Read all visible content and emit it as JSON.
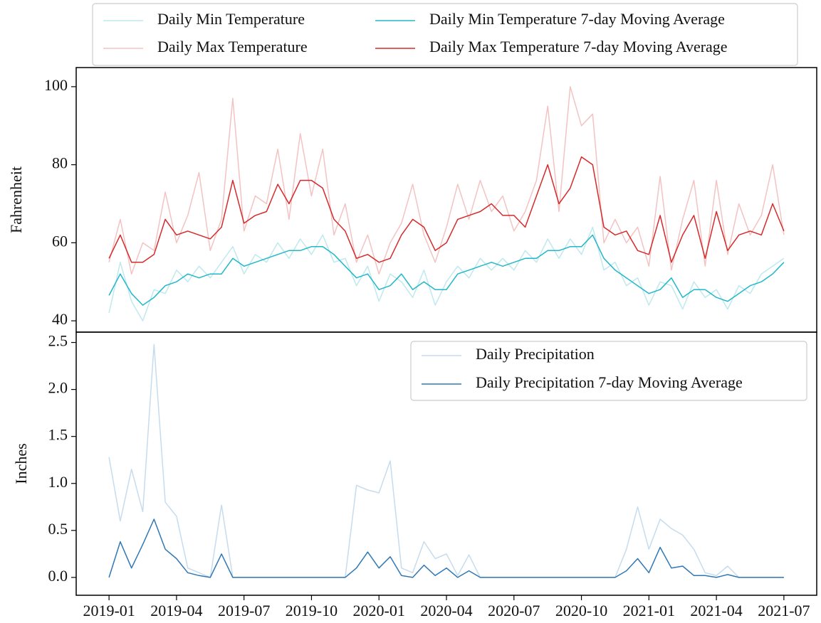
{
  "chart_data": [
    {
      "type": "line",
      "ylabel": "Fahrenheit",
      "legend": "above",
      "legend_columns": 2,
      "x": [
        0,
        0.5,
        1,
        1.5,
        2,
        2.5,
        3,
        3.5,
        4,
        4.5,
        5,
        5.5,
        6,
        6.5,
        7,
        7.5,
        8,
        8.5,
        9,
        9.5,
        10,
        10.5,
        11,
        11.5,
        12,
        12.5,
        13,
        13.5,
        14,
        14.5,
        15,
        15.5,
        16,
        16.5,
        17,
        17.5,
        18,
        18.5,
        19,
        19.5,
        20,
        20.5,
        21,
        21.5,
        22,
        22.5,
        23,
        23.5,
        24,
        24.5,
        25,
        25.5,
        26,
        26.5,
        27,
        27.5,
        28,
        28.5,
        29,
        29.5,
        30
      ],
      "xlim": [
        -1.46,
        31.46
      ],
      "ylim": [
        37.1,
        104.9
      ],
      "yticks": [
        40,
        60,
        80,
        100
      ],
      "series": [
        {
          "name": "Daily Min Temperature",
          "color": "#bfe9ef",
          "values": [
            42,
            55,
            45,
            40,
            48,
            47,
            53,
            50,
            54,
            51,
            55,
            59,
            52,
            57,
            55,
            60,
            56,
            61,
            57,
            62,
            55,
            56,
            49,
            54,
            45,
            52,
            50,
            46,
            53,
            44,
            50,
            54,
            51,
            56,
            53,
            56,
            53,
            58,
            55,
            61,
            56,
            61,
            57,
            64,
            53,
            55,
            49,
            51,
            44,
            50,
            49,
            43,
            50,
            46,
            48,
            43,
            49,
            47,
            52,
            54,
            56
          ]
        },
        {
          "name": "Daily Max Temperature",
          "color": "#f3c3c3",
          "values": [
            55,
            66,
            52,
            60,
            58,
            73,
            60,
            67,
            78,
            58,
            66,
            97,
            63,
            72,
            70,
            84,
            66,
            88,
            72,
            84,
            62,
            70,
            55,
            62,
            52,
            60,
            65,
            75,
            62,
            55,
            64,
            75,
            66,
            76,
            68,
            72,
            63,
            68,
            76,
            95,
            68,
            100,
            90,
            93,
            60,
            66,
            60,
            64,
            54,
            77,
            53,
            66,
            76,
            54,
            76,
            57,
            70,
            62,
            67,
            80,
            62
          ]
        },
        {
          "name": "Daily Min Temperature 7-day Moving Average",
          "color": "#22b8c9",
          "values": [
            46.5,
            52,
            47,
            44,
            46,
            49,
            50,
            52,
            51,
            52,
            52,
            56,
            54,
            55,
            56,
            57,
            58,
            58,
            59,
            59,
            57,
            54,
            51,
            52,
            48,
            49,
            52,
            48,
            50,
            48,
            48,
            52,
            53,
            54,
            55,
            54,
            55,
            56,
            56,
            58,
            58,
            59,
            59,
            62,
            56,
            53,
            51,
            49,
            47,
            48,
            51,
            46,
            48,
            48,
            46,
            45,
            47,
            49,
            50,
            52,
            55
          ]
        },
        {
          "name": "Daily Max Temperature 7-day Moving Average",
          "color": "#d62a2a",
          "values": [
            56,
            62,
            55,
            55,
            57,
            66,
            62,
            63,
            62,
            61,
            64,
            76,
            65,
            67,
            68,
            75,
            70,
            76,
            76,
            74,
            66,
            63,
            56,
            57,
            55,
            56,
            62,
            66,
            64,
            58,
            60,
            66,
            67,
            68,
            70,
            67,
            67,
            64,
            72,
            80,
            70,
            74,
            82,
            80,
            64,
            62,
            63,
            58,
            57,
            67,
            55,
            62,
            67,
            56,
            68,
            58,
            62,
            63,
            62,
            70,
            63
          ]
        }
      ]
    },
    {
      "type": "line",
      "ylabel": "Inches",
      "legend": "upper right",
      "legend_columns": 1,
      "x": [
        0,
        0.5,
        1,
        1.5,
        2,
        2.5,
        3,
        3.5,
        4,
        4.5,
        5,
        5.5,
        6,
        6.5,
        7,
        7.5,
        8,
        8.5,
        9,
        9.5,
        10,
        10.5,
        11,
        11.5,
        12,
        12.5,
        13,
        13.5,
        14,
        14.5,
        15,
        15.5,
        16,
        16.5,
        17,
        17.5,
        18,
        18.5,
        19,
        19.5,
        20,
        20.5,
        21,
        21.5,
        22,
        22.5,
        23,
        23.5,
        24,
        24.5,
        25,
        25.5,
        26,
        26.5,
        27,
        27.5,
        28,
        28.5,
        29,
        29.5,
        30
      ],
      "xlim": [
        -1.46,
        31.46
      ],
      "ylim": [
        -0.19,
        2.61
      ],
      "xticks": [
        {
          "value": 0,
          "label": "2019-01"
        },
        {
          "value": 3,
          "label": "2019-04"
        },
        {
          "value": 6,
          "label": "2019-07"
        },
        {
          "value": 9,
          "label": "2019-10"
        },
        {
          "value": 12,
          "label": "2020-01"
        },
        {
          "value": 15,
          "label": "2020-04"
        },
        {
          "value": 18,
          "label": "2020-07"
        },
        {
          "value": 21,
          "label": "2020-10"
        },
        {
          "value": 24,
          "label": "2021-01"
        },
        {
          "value": 27,
          "label": "2021-04"
        },
        {
          "value": 30,
          "label": "2021-07"
        }
      ],
      "yticks": [
        {
          "value": 0,
          "label": "0.0"
        },
        {
          "value": 0.5,
          "label": "0.5"
        },
        {
          "value": 1,
          "label": "1.0"
        },
        {
          "value": 1.5,
          "label": "1.5"
        },
        {
          "value": 2,
          "label": "2.0"
        },
        {
          "value": 2.5,
          "label": "2.5"
        }
      ],
      "series": [
        {
          "name": "Daily Precipitation",
          "color": "#c6dcee",
          "values": [
            1.28,
            0.6,
            1.15,
            0.7,
            2.48,
            0.8,
            0.65,
            0.1,
            0.05,
            0,
            0.77,
            0,
            0,
            0,
            0,
            0,
            0,
            0,
            0,
            0,
            0,
            0,
            0.98,
            0.93,
            0.9,
            1.24,
            0.1,
            0.05,
            0.38,
            0.2,
            0.25,
            0.02,
            0.24,
            0,
            0,
            0,
            0,
            0,
            0,
            0,
            0,
            0,
            0,
            0,
            0,
            0,
            0.3,
            0.75,
            0.3,
            0.62,
            0.52,
            0.45,
            0.3,
            0.05,
            0.02,
            0.12,
            0,
            0,
            0,
            0,
            0
          ]
        },
        {
          "name": "Daily Precipitation 7-day Moving Average",
          "color": "#2f78b5",
          "values": [
            0,
            0.38,
            0.1,
            0.35,
            0.62,
            0.3,
            0.2,
            0.05,
            0.02,
            0,
            0.25,
            0,
            0,
            0,
            0,
            0,
            0,
            0,
            0,
            0,
            0,
            0,
            0.1,
            0.27,
            0.1,
            0.22,
            0.02,
            0,
            0.13,
            0.02,
            0.1,
            0,
            0.07,
            0,
            0,
            0,
            0,
            0,
            0,
            0,
            0,
            0,
            0,
            0,
            0,
            0,
            0.07,
            0.2,
            0.05,
            0.32,
            0.1,
            0.12,
            0.02,
            0.02,
            0,
            0.03,
            0,
            0,
            0,
            0,
            0
          ]
        }
      ]
    }
  ]
}
